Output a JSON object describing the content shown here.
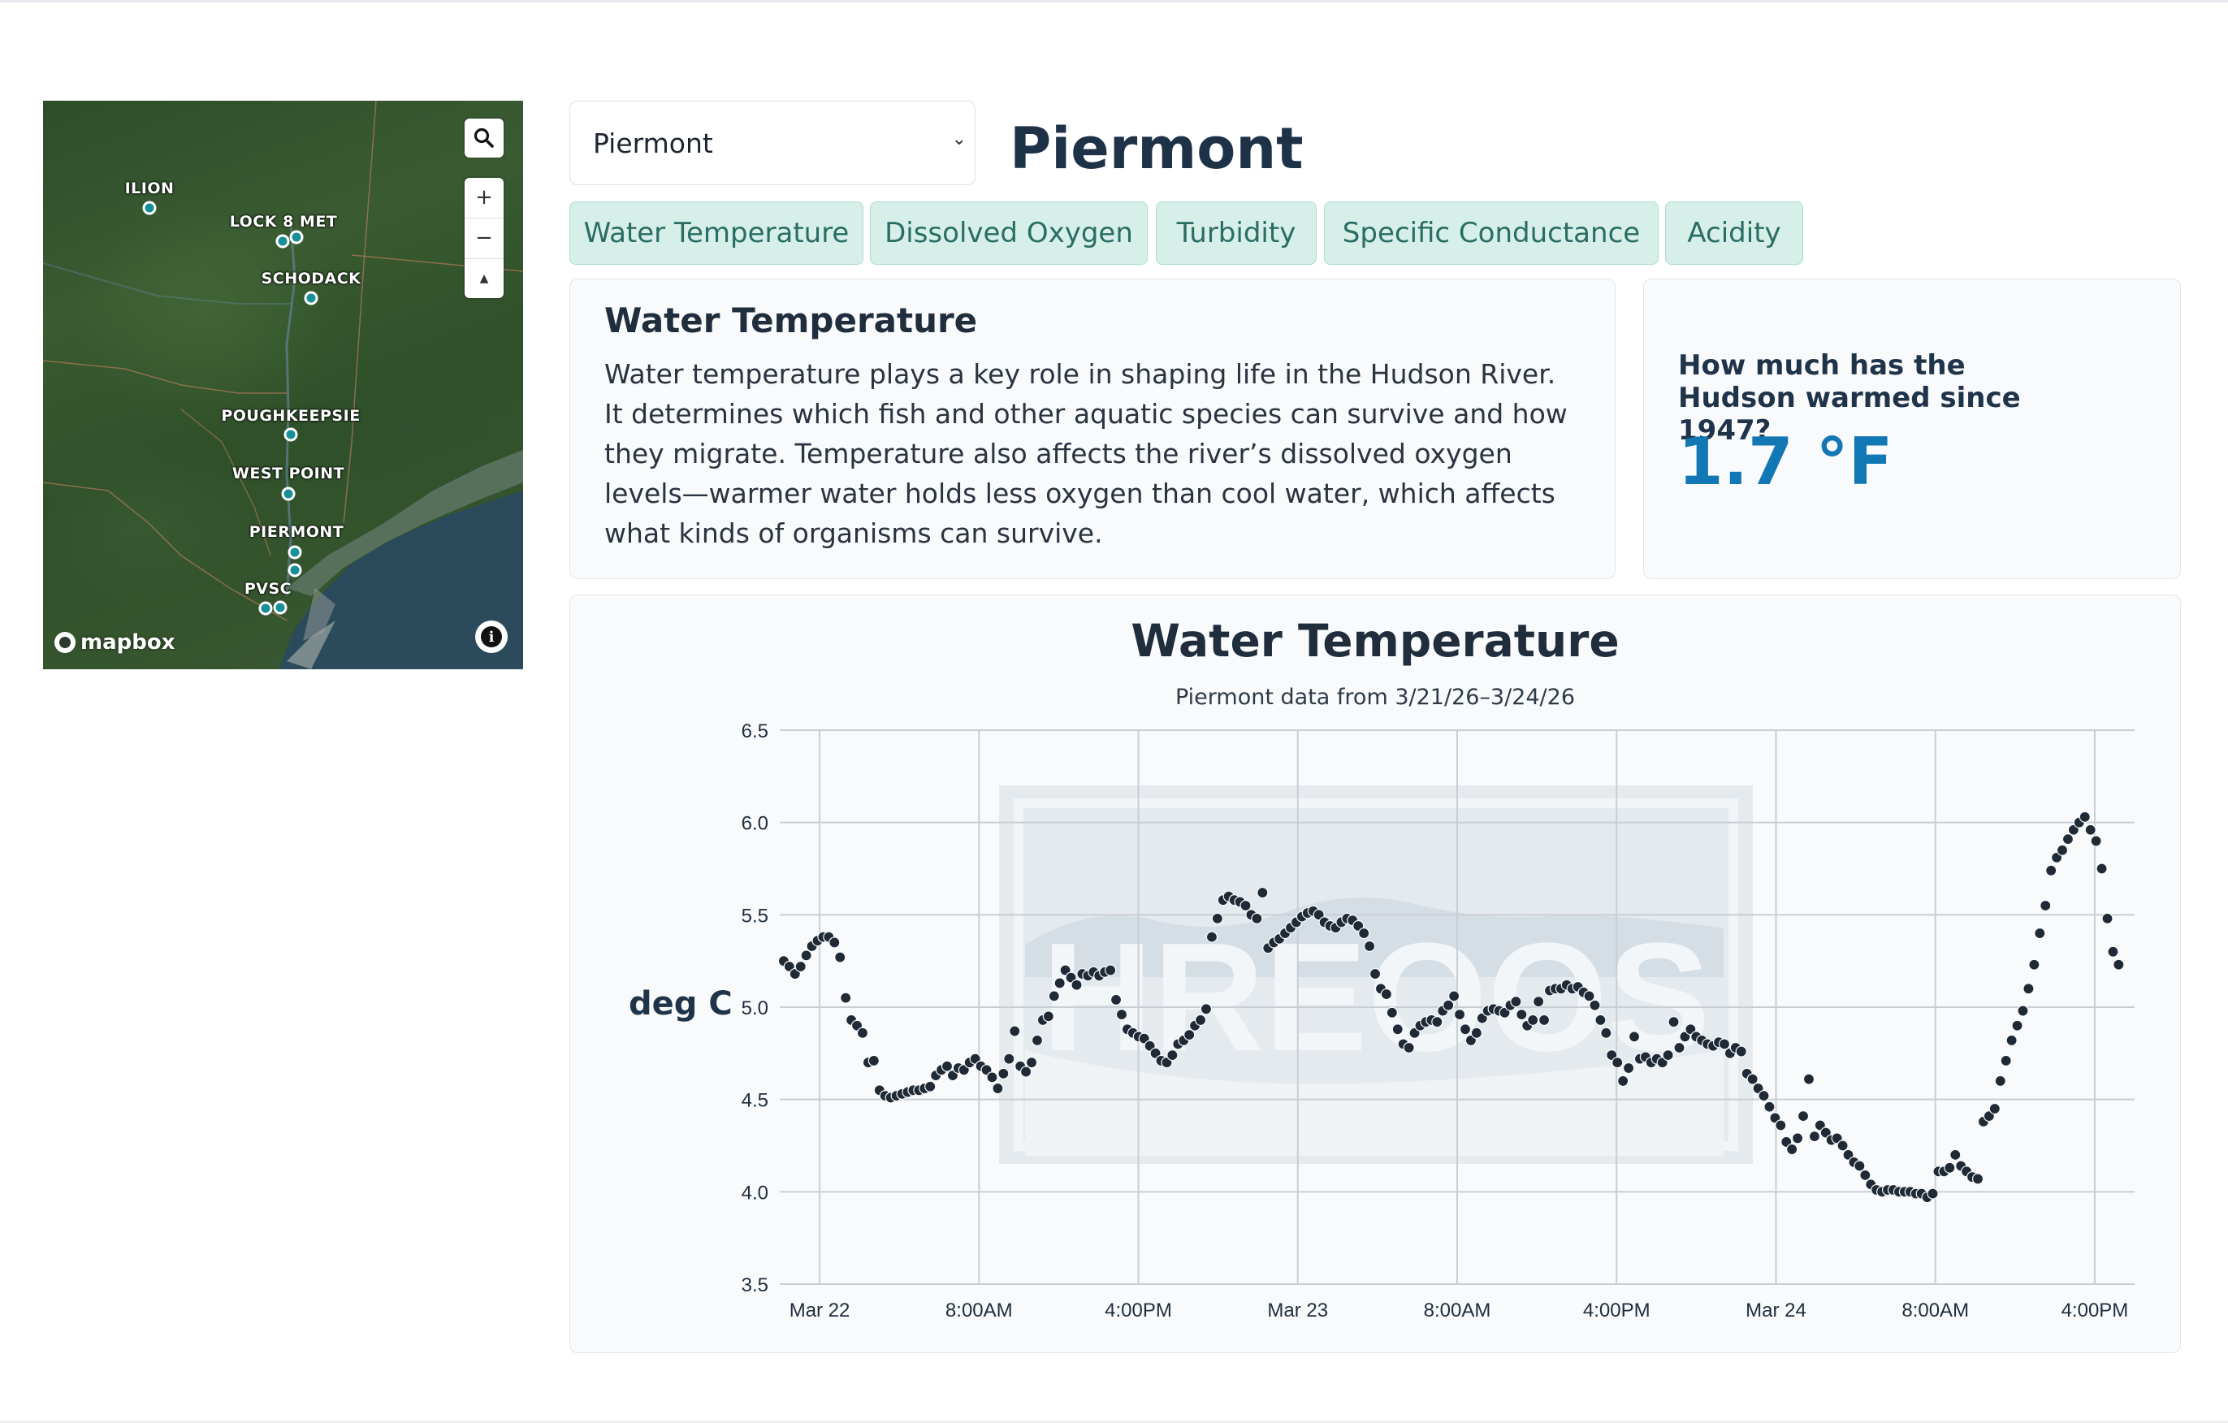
{
  "map": {
    "markers": [
      {
        "label": "ILION"
      },
      {
        "label": "LOCK 8 MET"
      },
      {
        "label": "SCHODACK"
      },
      {
        "label": "POUGHKEEPSIE"
      },
      {
        "label": "WEST POINT"
      },
      {
        "label": "PIERMONT"
      },
      {
        "label": "PVSC"
      }
    ],
    "attribution": "mapbox",
    "controls": {
      "zoom_in": "+",
      "zoom_out": "−",
      "compass": "▲",
      "info": "i"
    },
    "icons": [
      "search-icon",
      "zoom-in-icon",
      "zoom-out-icon",
      "compass-icon",
      "info-icon",
      "mapbox-logo-icon"
    ],
    "marker_color": "#178f96"
  },
  "site_select": {
    "value": "Piermont",
    "chevron": "⌄"
  },
  "site_title": "Piermont",
  "tabs": [
    {
      "label": "Water Temperature"
    },
    {
      "label": "Dissolved Oxygen"
    },
    {
      "label": "Turbidity"
    },
    {
      "label": "Specific Conductance"
    },
    {
      "label": "Acidity"
    }
  ],
  "description": {
    "title": "Water Temperature",
    "body": "Water temperature plays a key role in shaping life in the Hudson River. It determines which fish and other aquatic species can survive and how they migrate. Temperature also affects the river’s dissolved oxygen levels—warmer water holds less oxygen than cool water, which affects what kinds of organisms can survive."
  },
  "stat": {
    "question": "How much has the Hudson warmed since 1947?",
    "value": "1.7 °F"
  },
  "colors": {
    "accent": "#1277b5",
    "tab_bg": "#d6efe9",
    "tab_text": "#2a6d64",
    "heading": "#1d3147",
    "point": "#1f2a36"
  },
  "chart_data": {
    "type": "scatter",
    "title": "Water Temperature",
    "subtitle": "Piermont data from 3/21/26–3/24/26",
    "ylabel": "deg C",
    "ylim": [
      3.5,
      6.5
    ],
    "yticks": [
      "6.5",
      "6.0",
      "5.5",
      "5.0",
      "4.5",
      "4.0",
      "3.5"
    ],
    "xticks": [
      "Mar 22",
      "8:00AM",
      "4:00PM",
      "Mar 23",
      "8:00AM",
      "4:00PM",
      "Mar 24",
      "8:00AM",
      "4:00PM"
    ],
    "xlim_hours": [
      -2,
      66
    ],
    "grid": true,
    "watermark": "HREOOS",
    "y": [
      5.25,
      5.22,
      5.18,
      5.22,
      5.28,
      5.33,
      5.36,
      5.38,
      5.38,
      5.35,
      5.27,
      5.05,
      4.93,
      4.9,
      4.86,
      4.7,
      4.71,
      4.55,
      4.52,
      4.51,
      4.52,
      4.53,
      4.54,
      4.55,
      4.55,
      4.56,
      4.57,
      4.63,
      4.66,
      4.68,
      4.63,
      4.67,
      4.66,
      4.7,
      4.72,
      4.68,
      4.66,
      4.62,
      4.56,
      4.64,
      4.72,
      4.87,
      4.68,
      4.65,
      4.7,
      4.82,
      4.93,
      4.95,
      5.06,
      5.13,
      5.2,
      5.16,
      5.12,
      5.18,
      5.17,
      5.19,
      5.17,
      5.19,
      5.2,
      5.04,
      4.96,
      4.88,
      4.86,
      4.84,
      4.83,
      4.79,
      4.75,
      4.71,
      4.7,
      4.74,
      4.8,
      4.82,
      4.85,
      4.9,
      4.93,
      4.99,
      5.38,
      5.48,
      5.58,
      5.6,
      5.58,
      5.57,
      5.55,
      5.5,
      5.48,
      5.62,
      5.32,
      5.35,
      5.37,
      5.4,
      5.43,
      5.46,
      5.49,
      5.51,
      5.52,
      5.5,
      5.46,
      5.44,
      5.43,
      5.46,
      5.48,
      5.47,
      5.44,
      5.4,
      5.33,
      5.18,
      5.1,
      5.07,
      4.97,
      4.88,
      4.8,
      4.78,
      4.86,
      4.9,
      4.92,
      4.93,
      4.92,
      4.98,
      5.01,
      5.06,
      4.96,
      4.88,
      4.82,
      4.86,
      4.94,
      4.98,
      4.99,
      4.98,
      4.97,
      5.01,
      5.03,
      4.96,
      4.9,
      4.93,
      5.03,
      4.93,
      5.09,
      5.1,
      5.1,
      5.12,
      5.1,
      5.11,
      5.08,
      5.06,
      5.01,
      4.93,
      4.86,
      4.74,
      4.7,
      4.6,
      4.67,
      4.84,
      4.72,
      4.73,
      4.7,
      4.72,
      4.7,
      4.74,
      4.92,
      4.78,
      4.84,
      4.88,
      4.84,
      4.82,
      4.8,
      4.79,
      4.81,
      4.8,
      4.75,
      4.78,
      4.76,
      4.64,
      4.61,
      4.56,
      4.52,
      4.46,
      4.4,
      4.36,
      4.27,
      4.23,
      4.29,
      4.41,
      4.61,
      4.3,
      4.36,
      4.32,
      4.28,
      4.29,
      4.25,
      4.2,
      4.16,
      4.14,
      4.09,
      4.04,
      4.01,
      4.0,
      4.01,
      4.01,
      4.0,
      4.0,
      4.0,
      3.99,
      3.99,
      3.97,
      3.99,
      4.11,
      4.11,
      4.13,
      4.2,
      4.14,
      4.11,
      4.08,
      4.07,
      4.38,
      4.41,
      4.45,
      4.6,
      4.71,
      4.82,
      4.9,
      4.98,
      5.1,
      5.23,
      5.4,
      5.55,
      5.74,
      5.81,
      5.85,
      5.91,
      5.96,
      6.0,
      6.03,
      5.96,
      5.9,
      5.75,
      5.48,
      5.3,
      5.23
    ]
  }
}
